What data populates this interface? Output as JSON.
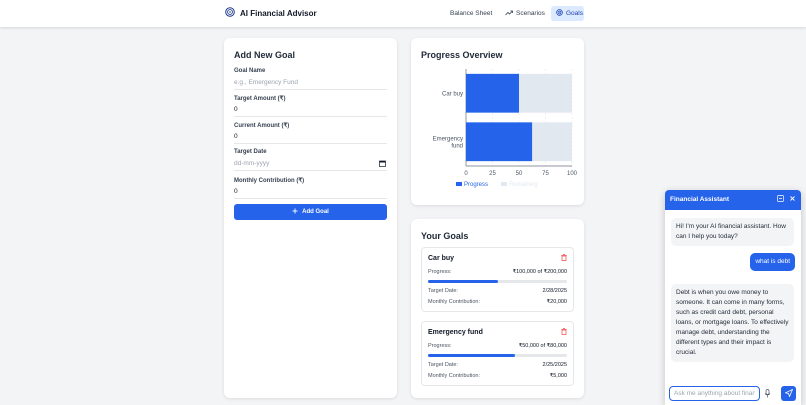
{
  "app": {
    "title": "AI Financial Advisor",
    "nav": [
      {
        "label": "Balance Sheet",
        "icon": "",
        "active": false
      },
      {
        "label": "Scenarios",
        "icon": "trending-up-icon",
        "active": false
      },
      {
        "label": "Goals",
        "icon": "target-icon",
        "active": true
      }
    ]
  },
  "add_goal": {
    "title": "Add New Goal",
    "fields": {
      "goal_name": {
        "label": "Goal Name",
        "placeholder": "e.g., Emergency Fund",
        "value": ""
      },
      "target_amount": {
        "label": "Target Amount (₹)",
        "value": "0"
      },
      "current_amount": {
        "label": "Current Amount (₹)",
        "value": "0"
      },
      "target_date": {
        "label": "Target Date",
        "placeholder": "dd-mm-yyyy"
      },
      "monthly_contribution": {
        "label": "Monthly Contribution (₹)",
        "value": "0"
      }
    },
    "button_label": "Add Goal"
  },
  "progress_overview": {
    "title": "Progress Overview"
  },
  "chart_data": {
    "type": "bar",
    "orientation": "horizontal",
    "stacked": true,
    "categories": [
      "Car buy",
      "Emergency fund"
    ],
    "series": [
      {
        "name": "Progress",
        "values": [
          50,
          62.5
        ],
        "color": "#2563eb"
      },
      {
        "name": "Remaining",
        "values": [
          50,
          37.5
        ],
        "color": "#e2e8f0"
      }
    ],
    "xlim": [
      0,
      100
    ],
    "xticks": [
      "0",
      "25",
      "50",
      "75",
      "100"
    ],
    "legend": "bottom",
    "grid": true
  },
  "your_goals": {
    "title": "Your Goals",
    "labels": {
      "progress": "Progress:",
      "target_date": "Target Date:",
      "monthly": "Monthly Contribution:"
    },
    "goals": [
      {
        "name": "Car buy",
        "progress_text": "₹100,000 of ₹200,000",
        "progress_fraction": 0.5,
        "target_date": "2/28/2025",
        "monthly": "₹20,000"
      },
      {
        "name": "Emergency fund",
        "progress_text": "₹50,000 of ₹80,000",
        "progress_fraction": 0.625,
        "target_date": "2/25/2025",
        "monthly": "₹5,000"
      }
    ]
  },
  "chat": {
    "title": "Financial Assistant",
    "messages": [
      {
        "role": "bot",
        "text": "Hi! I'm your AI financial assistant. How can I help you today?"
      },
      {
        "role": "user",
        "text": "what is debt"
      },
      {
        "role": "bot",
        "text": "Debt is when you owe money to someone. It can come in many forms, such as credit card debt, personal loans, or mortgage loans. To effectively manage debt, understanding the different types and their impact is crucial."
      }
    ],
    "input_placeholder": "Ask me anything about finances..."
  },
  "colors": {
    "accent": "#2563eb",
    "remaining": "#e2e8f0",
    "danger": "#ef4444"
  }
}
